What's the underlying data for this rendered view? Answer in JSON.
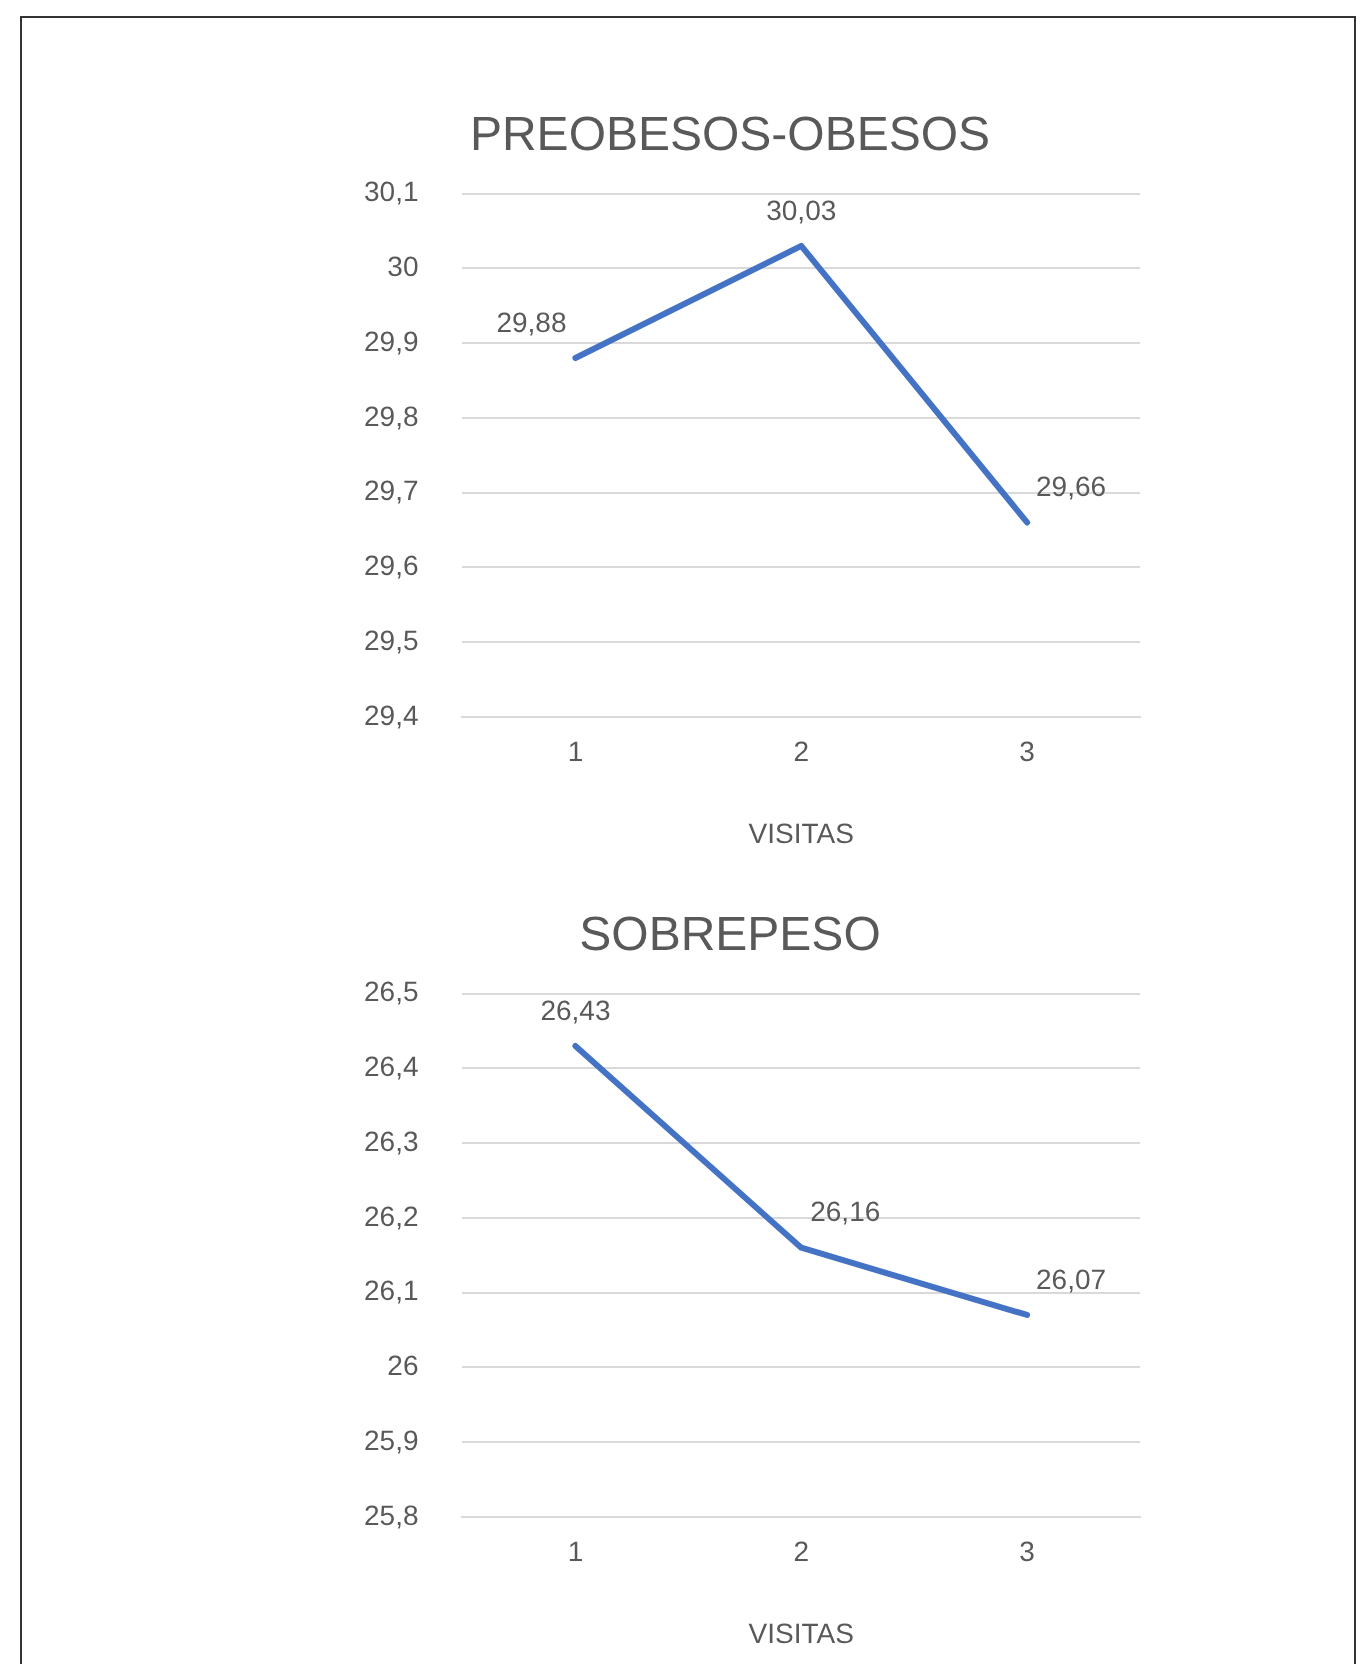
{
  "chart_data": [
    {
      "type": "line",
      "title": "PREOBESOS-OBESOS",
      "xlabel": "VISITAS",
      "categories": [
        "1",
        "2",
        "3"
      ],
      "series": [
        {
          "color": "#4472c4",
          "values": [
            29.88,
            30.03,
            29.66
          ],
          "value_labels": [
            "29,88",
            "30,03",
            "29,66"
          ]
        }
      ],
      "ylim": [
        29.4,
        30.1
      ],
      "yticks": [
        {
          "value": 29.4,
          "label": "29,4"
        },
        {
          "value": 29.5,
          "label": "29,5"
        },
        {
          "value": 29.6,
          "label": "29,6"
        },
        {
          "value": 29.7,
          "label": "29,7"
        },
        {
          "value": 29.8,
          "label": "29,8"
        },
        {
          "value": 29.9,
          "label": "29,9"
        },
        {
          "value": 30,
          "label": "30"
        },
        {
          "value": 30.1,
          "label": "30,1"
        }
      ],
      "grid": "y",
      "legend": false,
      "marker": "none",
      "line_style": "solid"
    },
    {
      "type": "line",
      "title": "SOBREPESO",
      "xlabel": "VISITAS",
      "categories": [
        "1",
        "2",
        "3"
      ],
      "series": [
        {
          "color": "#4472c4",
          "values": [
            26.43,
            26.16,
            26.07
          ],
          "value_labels": [
            "26,43",
            "26,16",
            "26,07"
          ]
        }
      ],
      "ylim": [
        25.8,
        26.5
      ],
      "yticks": [
        {
          "value": 25.8,
          "label": "25,8"
        },
        {
          "value": 25.9,
          "label": "25,9"
        },
        {
          "value": 26,
          "label": "26"
        },
        {
          "value": 26.1,
          "label": "26,1"
        },
        {
          "value": 26.2,
          "label": "26,2"
        },
        {
          "value": 26.3,
          "label": "26,3"
        },
        {
          "value": 26.4,
          "label": "26,4"
        },
        {
          "value": 26.5,
          "label": "26,5"
        }
      ],
      "grid": "y",
      "legend": false,
      "marker": "none",
      "line_style": "solid"
    }
  ]
}
